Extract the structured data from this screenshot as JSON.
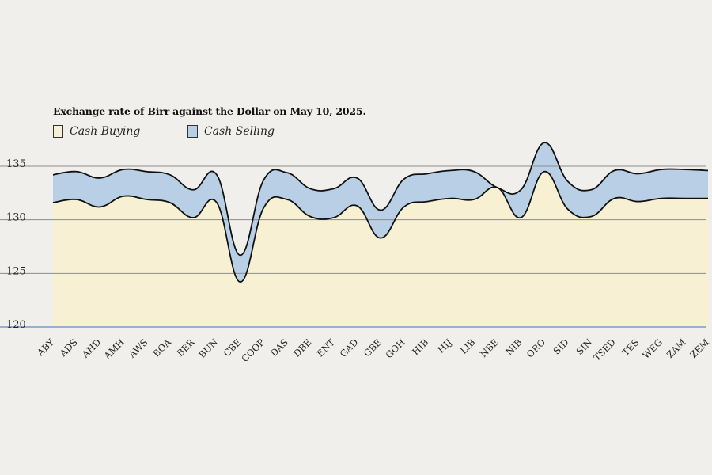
{
  "chart_data": {
    "type": "area",
    "title": "Exchange rate of Birr against the Dollar on May 10, 2025.",
    "categories": [
      "ABY",
      "ADS",
      "AHD",
      "AMH",
      "AWS",
      "BOA",
      "BER",
      "BUN",
      "CBE",
      "COOP",
      "DAS",
      "DBE",
      "ENT",
      "GAD",
      "GBE",
      "GOH",
      "HIB",
      "HIJ",
      "LIB",
      "NBE",
      "NIB",
      "ORO",
      "SID",
      "SIN",
      "TSED",
      "TES",
      "WEG",
      "ZAM",
      "ZEM"
    ],
    "series": [
      {
        "name": "Cash Buying",
        "color": "#f7f0d2",
        "values": [
          131.6,
          131.9,
          131.2,
          132.2,
          131.9,
          131.6,
          130.2,
          131.6,
          124.2,
          131.1,
          131.9,
          130.3,
          130.2,
          131.3,
          128.3,
          131.2,
          131.7,
          132.0,
          131.9,
          133.0,
          130.2,
          134.5,
          131.0,
          130.3,
          132.0,
          131.7,
          132.0,
          132.0,
          132.0
        ]
      },
      {
        "name": "Cash Selling",
        "color": "#b8cfe6",
        "values": [
          134.2,
          134.5,
          133.9,
          134.7,
          134.5,
          134.2,
          132.8,
          134.2,
          126.7,
          133.7,
          134.4,
          132.9,
          132.9,
          133.9,
          130.9,
          133.8,
          134.3,
          134.6,
          134.5,
          133.0,
          132.8,
          137.2,
          133.6,
          132.8,
          134.6,
          134.3,
          134.7,
          134.7,
          134.6
        ]
      }
    ],
    "y_ticks": [
      "135",
      "130",
      "125",
      "120"
    ],
    "y_tick_values": [
      135,
      130,
      125,
      120
    ],
    "ylim": [
      120,
      135
    ],
    "grid": true,
    "legend_position": "top-left"
  }
}
